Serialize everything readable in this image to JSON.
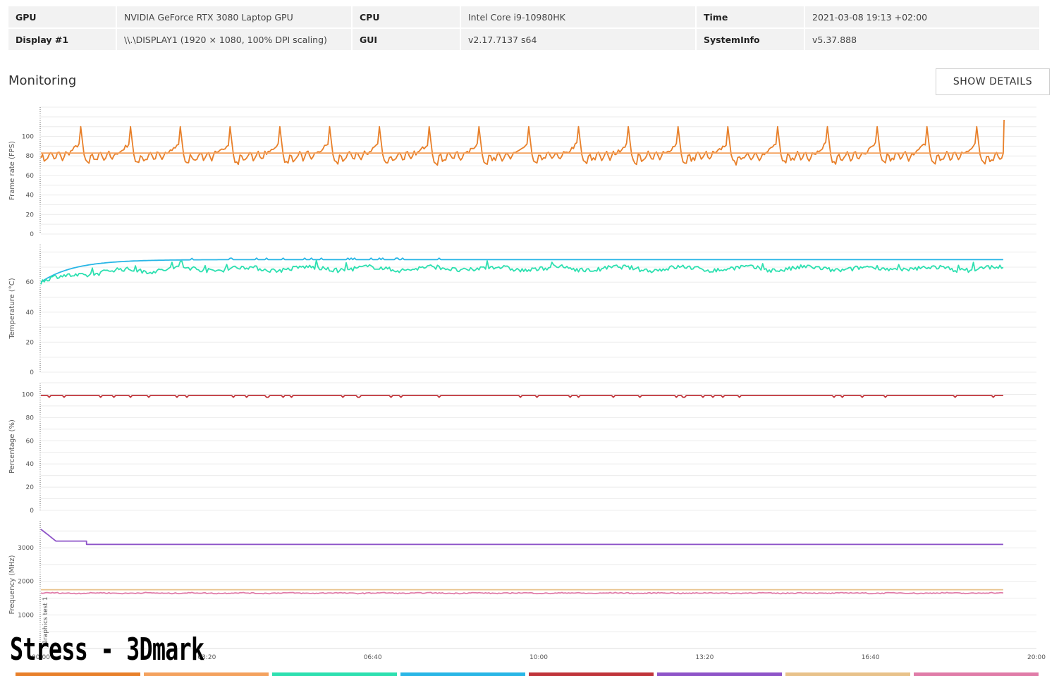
{
  "info": {
    "rows": [
      [
        {
          "label": "GPU",
          "value": "NVIDIA GeForce RTX 3080 Laptop GPU"
        },
        {
          "label": "CPU",
          "value": "Intel Core i9-10980HK"
        },
        {
          "label": "Time",
          "value": "2021-03-08 19:13 +02:00"
        }
      ],
      [
        {
          "label": "Display #1",
          "value": "\\\\.\\DISPLAY1 (1920 × 1080, 100% DPI scaling)"
        },
        {
          "label": "GUI",
          "value": "v2.17.7137 s64"
        },
        {
          "label": "SystemInfo",
          "value": "v5.37.888"
        }
      ]
    ]
  },
  "monitoring": {
    "title": "Monitoring",
    "show_details_label": "SHOW DETAILS"
  },
  "watermark": "Stress - 3Dmark",
  "chart_data": {
    "type": "line",
    "x_ticks": [
      "00:00",
      "03:20",
      "06:40",
      "10:00",
      "13:20",
      "16:40",
      "20:00"
    ],
    "x_range_seconds": [
      0,
      1200
    ],
    "marker": {
      "label": "Graphics test 1",
      "x_seconds": 0
    },
    "panels": [
      {
        "ylabel": "Frame rate (FPS)",
        "ylim": [
          0,
          130
        ],
        "yticks": [
          0,
          20,
          40,
          60,
          80,
          100
        ],
        "series": [
          {
            "color": "#e8802a",
            "generator": "fps",
            "base": 82,
            "period_s": 60,
            "peak": 110,
            "trough": 70,
            "end_value": 117
          },
          {
            "color": "#f4a25e",
            "generator": "flat",
            "value": 83
          }
        ]
      },
      {
        "ylabel": "Temperature (°C)",
        "ylim": [
          0,
          85
        ],
        "yticks": [
          0,
          20,
          40,
          60
        ],
        "series": [
          {
            "color": "#29b6e6",
            "generator": "warmup",
            "start": 60,
            "plateau": 75
          },
          {
            "color": "#2de0b0",
            "generator": "noisy_warmup",
            "start": 60,
            "plateau": 69
          }
        ]
      },
      {
        "ylabel": "Percentage (%)",
        "ylim": [
          0,
          110
        ],
        "yticks": [
          0,
          20,
          40,
          60,
          80,
          100
        ],
        "series": [
          {
            "color": "#c0343a",
            "generator": "flat_dips",
            "value": 99
          }
        ]
      },
      {
        "ylabel": "Frequency (MHz)",
        "ylim": [
          0,
          3800
        ],
        "yticks": [
          1000,
          2000,
          3000
        ],
        "series": [
          {
            "color": "#8e54c8",
            "generator": "step_down",
            "points": [
              [
                0,
                3550
              ],
              [
                8,
                3400
              ],
              [
                18,
                3200
              ],
              [
                55,
                3200
              ],
              [
                55,
                3100
              ],
              [
                1200,
                3100
              ]
            ]
          },
          {
            "color": "#e8c28a",
            "generator": "flat",
            "value": 1750
          },
          {
            "color": "#e07ca8",
            "generator": "noisy_flat",
            "value": 1650
          }
        ]
      }
    ],
    "legend_colors": [
      "#e8802a",
      "#f4a25e",
      "#2de0b0",
      "#29b6e6",
      "#c0343a",
      "#8e54c8",
      "#e8c28a",
      "#e07ca8"
    ]
  }
}
